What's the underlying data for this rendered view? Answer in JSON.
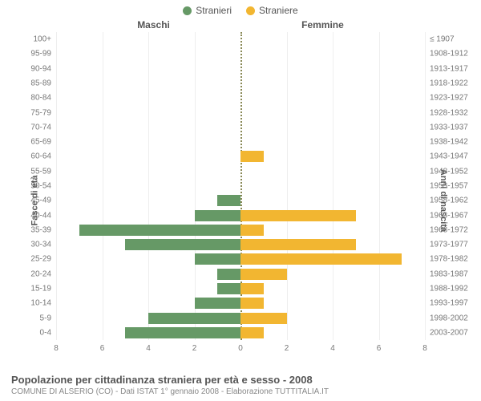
{
  "legend": {
    "male": {
      "label": "Stranieri",
      "color": "#669966"
    },
    "female": {
      "label": "Straniere",
      "color": "#f2b631"
    }
  },
  "columns": {
    "left": "Maschi",
    "right": "Femmine"
  },
  "axis_labels": {
    "left": "Fasce di età",
    "right": "Anni di nascita"
  },
  "x_axis": {
    "max": 8,
    "ticks": [
      8,
      6,
      4,
      2,
      0,
      2,
      4,
      6,
      8
    ]
  },
  "grid_color": "#eeeeee",
  "center_line_color": "#888855",
  "background_color": "#ffffff",
  "tick_fontsize": 10,
  "label_fontsize": 11,
  "rows": [
    {
      "age": "100+",
      "birth": "≤ 1907",
      "m": 0,
      "f": 0
    },
    {
      "age": "95-99",
      "birth": "1908-1912",
      "m": 0,
      "f": 0
    },
    {
      "age": "90-94",
      "birth": "1913-1917",
      "m": 0,
      "f": 0
    },
    {
      "age": "85-89",
      "birth": "1918-1922",
      "m": 0,
      "f": 0
    },
    {
      "age": "80-84",
      "birth": "1923-1927",
      "m": 0,
      "f": 0
    },
    {
      "age": "75-79",
      "birth": "1928-1932",
      "m": 0,
      "f": 0
    },
    {
      "age": "70-74",
      "birth": "1933-1937",
      "m": 0,
      "f": 0
    },
    {
      "age": "65-69",
      "birth": "1938-1942",
      "m": 0,
      "f": 0
    },
    {
      "age": "60-64",
      "birth": "1943-1947",
      "m": 0,
      "f": 1
    },
    {
      "age": "55-59",
      "birth": "1948-1952",
      "m": 0,
      "f": 0
    },
    {
      "age": "50-54",
      "birth": "1953-1957",
      "m": 0,
      "f": 0
    },
    {
      "age": "45-49",
      "birth": "1958-1962",
      "m": 1,
      "f": 0
    },
    {
      "age": "40-44",
      "birth": "1963-1967",
      "m": 2,
      "f": 5
    },
    {
      "age": "35-39",
      "birth": "1968-1972",
      "m": 7,
      "f": 1
    },
    {
      "age": "30-34",
      "birth": "1973-1977",
      "m": 5,
      "f": 5
    },
    {
      "age": "25-29",
      "birth": "1978-1982",
      "m": 2,
      "f": 7
    },
    {
      "age": "20-24",
      "birth": "1983-1987",
      "m": 1,
      "f": 2
    },
    {
      "age": "15-19",
      "birth": "1988-1992",
      "m": 1,
      "f": 1
    },
    {
      "age": "10-14",
      "birth": "1993-1997",
      "m": 2,
      "f": 1
    },
    {
      "age": "5-9",
      "birth": "1998-2002",
      "m": 4,
      "f": 2
    },
    {
      "age": "0-4",
      "birth": "2003-2007",
      "m": 5,
      "f": 1
    }
  ],
  "footer": {
    "title": "Popolazione per cittadinanza straniera per età e sesso - 2008",
    "subtitle": "COMUNE DI ALSERIO (CO) - Dati ISTAT 1° gennaio 2008 - Elaborazione TUTTITALIA.IT"
  }
}
